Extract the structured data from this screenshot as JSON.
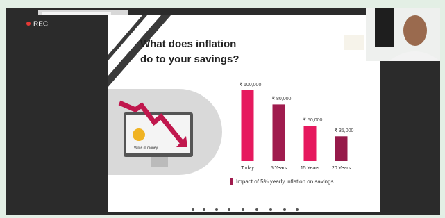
{
  "recording_label": "REC",
  "slide": {
    "title_line_1": "What does inflation",
    "title_line_2": "do to your savings?",
    "graphic_label": "Value of money"
  },
  "chart_data": {
    "type": "bar",
    "categories": [
      "Today",
      "5 Years",
      "15 Years",
      "20 Years"
    ],
    "values": [
      100000,
      80000,
      50000,
      35000
    ],
    "value_labels": [
      "₹ 100,000",
      "₹ 80,000",
      "₹ 50,000",
      "₹ 35,000"
    ],
    "colors": [
      "#e6195e",
      "#a01c4e",
      "#e6195e",
      "#961a4a"
    ],
    "legend": {
      "label": "Impact of 5% yearly inflation on savings",
      "color": "#a01c4e"
    }
  }
}
